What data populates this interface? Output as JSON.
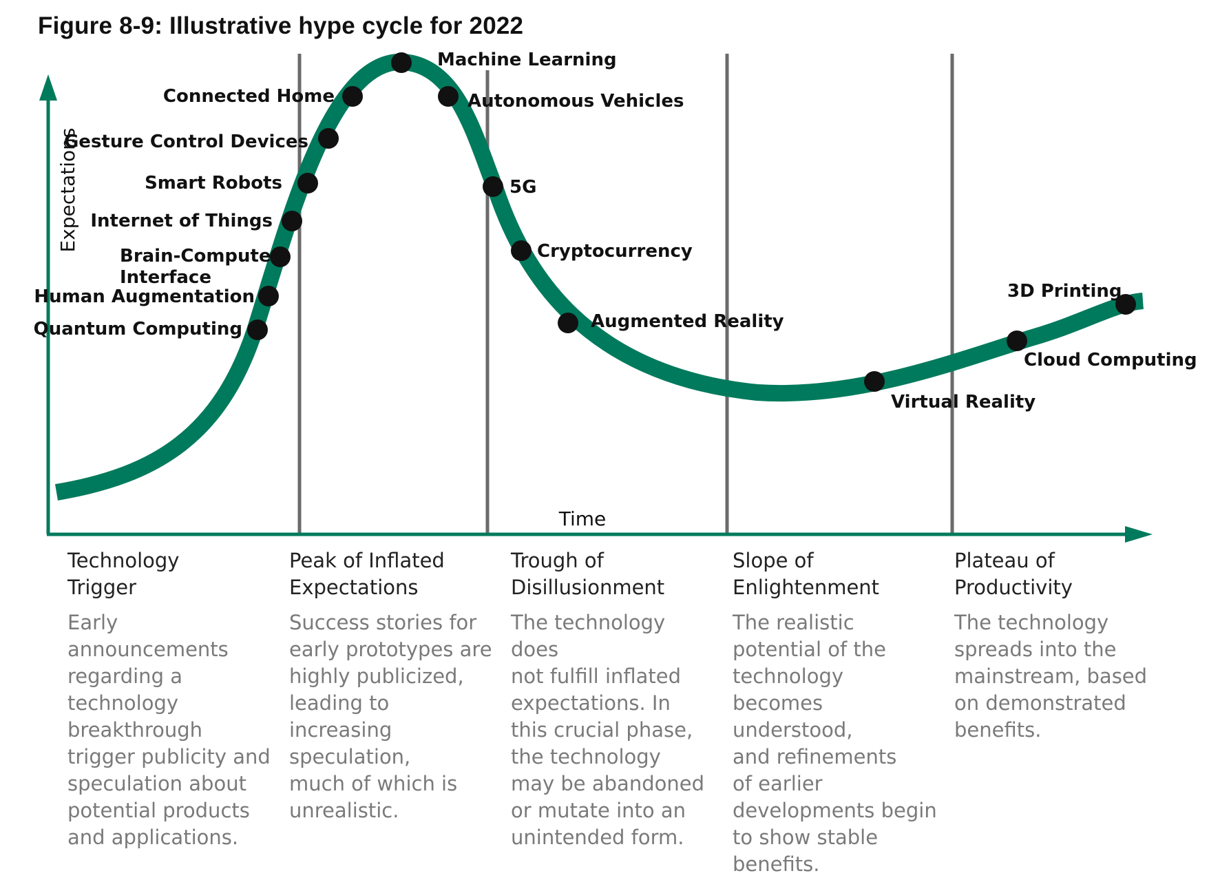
{
  "figure": {
    "title": "Figure 8-9: Illustrative hype cycle for 2022"
  },
  "axes": {
    "y_label": "Expectations",
    "x_label": "Time"
  },
  "colors": {
    "curve": "#007a5c",
    "axis": "#007a5c",
    "divider": "#6b6b6b",
    "dot": "#111111"
  },
  "technologies": [
    {
      "name": "Quantum Computing"
    },
    {
      "name": "Human Augmentation"
    },
    {
      "name": "Brain-Computer Interface"
    },
    {
      "name": "Internet of Things"
    },
    {
      "name": "Smart Robots"
    },
    {
      "name": "Gesture Control Devices"
    },
    {
      "name": "Connected Home"
    },
    {
      "name": "Machine Learning"
    },
    {
      "name": "Autonomous Vehicles"
    },
    {
      "name": "5G"
    },
    {
      "name": "Cryptocurrency"
    },
    {
      "name": "Augmented Reality"
    },
    {
      "name": "Virtual Reality"
    },
    {
      "name": "Cloud Computing"
    },
    {
      "name": "3D Printing"
    }
  ],
  "phases": [
    {
      "title": "Technology\nTrigger",
      "description": "Early\nannouncements\nregarding a\ntechnology\nbreakthrough\ntrigger publicity and\nspeculation about\npotential products\nand applications."
    },
    {
      "title": "Peak of Inflated\nExpectations",
      "description": "Success stories for\nearly prototypes are\nhighly publicized,\nleading to increasing\nspeculation,\nmuch of which is\nunrealistic."
    },
    {
      "title": "Trough of\nDisillusionment",
      "description": "The technology does\nnot fulfill inflated\nexpectations. In\nthis crucial phase,\nthe technology\nmay be abandoned\nor mutate into an\nunintended form."
    },
    {
      "title": "Slope of\nEnlightenment",
      "description": "The realistic\npotential of the\ntechnology becomes\nunderstood,\nand refinements\nof earlier\ndevelopments begin\nto show stable\nbenefits."
    },
    {
      "title": "Plateau of\nProductivity",
      "description": "The technology\nspreads into the\nmainstream, based\non demonstrated\nbenefits."
    }
  ]
}
